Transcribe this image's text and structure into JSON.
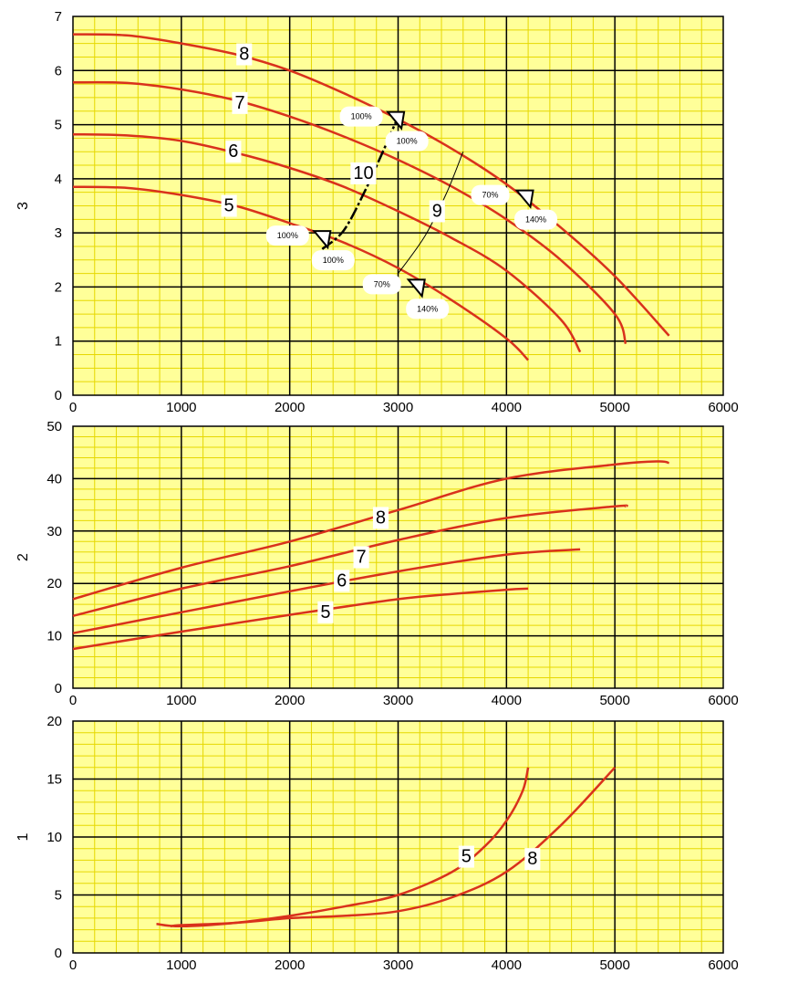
{
  "colors": {
    "background": "#ffff99",
    "minor_grid": "#e6d800",
    "major_grid": "#000000",
    "curve": "#d9311c"
  },
  "chart_data": [
    {
      "type": "line",
      "ylabel": "3",
      "xlim": [
        0,
        6000
      ],
      "ylim": [
        0,
        7
      ],
      "x_ticks": [
        "0",
        "1000",
        "2000",
        "3000",
        "4000",
        "5000",
        "6000"
      ],
      "y_ticks": [
        "0",
        "1",
        "2",
        "3",
        "4",
        "5",
        "6",
        "7"
      ],
      "grid": true,
      "series": [
        {
          "name": "5",
          "points": [
            [
              0,
              3.85
            ],
            [
              500,
              3.83
            ],
            [
              1000,
              3.7
            ],
            [
              1500,
              3.5
            ],
            [
              2000,
              3.18
            ],
            [
              2500,
              2.82
            ],
            [
              3000,
              2.35
            ],
            [
              3500,
              1.75
            ],
            [
              4000,
              1.05
            ],
            [
              4200,
              0.65
            ]
          ],
          "label_at": [
            1440,
            3.5
          ]
        },
        {
          "name": "6",
          "points": [
            [
              0,
              4.82
            ],
            [
              500,
              4.8
            ],
            [
              1000,
              4.7
            ],
            [
              1500,
              4.48
            ],
            [
              2000,
              4.2
            ],
            [
              2500,
              3.85
            ],
            [
              3000,
              3.4
            ],
            [
              3500,
              2.9
            ],
            [
              4000,
              2.3
            ],
            [
              4500,
              1.4
            ],
            [
              4680,
              0.8
            ]
          ],
          "label_at": [
            1480,
            4.5
          ]
        },
        {
          "name": "7",
          "points": [
            [
              0,
              5.78
            ],
            [
              500,
              5.77
            ],
            [
              1000,
              5.65
            ],
            [
              1500,
              5.45
            ],
            [
              2000,
              5.15
            ],
            [
              2500,
              4.78
            ],
            [
              3000,
              4.35
            ],
            [
              3500,
              3.85
            ],
            [
              4000,
              3.25
            ],
            [
              4500,
              2.5
            ],
            [
              5000,
              1.5
            ],
            [
              5100,
              0.95
            ]
          ],
          "label_at": [
            1540,
            5.4
          ]
        },
        {
          "name": "8",
          "points": [
            [
              0,
              6.67
            ],
            [
              500,
              6.65
            ],
            [
              1000,
              6.5
            ],
            [
              1500,
              6.3
            ],
            [
              2000,
              6.0
            ],
            [
              2500,
              5.58
            ],
            [
              3000,
              5.1
            ],
            [
              3500,
              4.55
            ],
            [
              4000,
              3.9
            ],
            [
              4500,
              3.1
            ],
            [
              5000,
              2.2
            ],
            [
              5500,
              1.1
            ]
          ],
          "label_at": [
            1580,
            6.3
          ]
        }
      ],
      "curve_9": {
        "label": "9",
        "points": [
          [
            3000,
            2.25
          ],
          [
            3250,
            2.95
          ],
          [
            3450,
            3.75
          ],
          [
            3600,
            4.5
          ]
        ],
        "label_at": [
          3360,
          3.4
        ]
      },
      "curve_10": {
        "label": "10",
        "points": [
          [
            2300,
            2.7
          ],
          [
            2500,
            3.05
          ],
          [
            2700,
            3.8
          ],
          [
            2870,
            4.55
          ],
          [
            2980,
            5.05
          ]
        ],
        "label_at": [
          2680,
          4.1
        ]
      },
      "markers": [
        {
          "at": [
            2980,
            5.1
          ],
          "left": "100%",
          "below": "100%"
        },
        {
          "at": [
            2300,
            2.9
          ],
          "left": "100%",
          "below": "100%"
        },
        {
          "at": [
            3170,
            2.0
          ],
          "left": "70%",
          "below": "140%"
        },
        {
          "at": [
            4170,
            3.65
          ],
          "left": "70%",
          "below": "140%"
        }
      ]
    },
    {
      "type": "line",
      "ylabel": "2",
      "xlim": [
        0,
        6000
      ],
      "ylim": [
        0,
        50
      ],
      "x_ticks": [
        "0",
        "1000",
        "2000",
        "3000",
        "4000",
        "5000",
        "6000"
      ],
      "y_ticks": [
        "0",
        "10",
        "20",
        "30",
        "40",
        "50"
      ],
      "grid": true,
      "series": [
        {
          "name": "5",
          "points": [
            [
              0,
              7.5
            ],
            [
              1000,
              10.8
            ],
            [
              2000,
              14
            ],
            [
              3000,
              17
            ],
            [
              3500,
              18
            ],
            [
              4000,
              18.8
            ],
            [
              4200,
              19
            ]
          ],
          "label_at": [
            2330,
            14.5
          ]
        },
        {
          "name": "6",
          "points": [
            [
              0,
              10.5
            ],
            [
              1000,
              14.5
            ],
            [
              2000,
              18.5
            ],
            [
              3000,
              22.3
            ],
            [
              4000,
              25.5
            ],
            [
              4680,
              26.5
            ]
          ],
          "label_at": [
            2480,
            20.5
          ]
        },
        {
          "name": "7",
          "points": [
            [
              0,
              13.8
            ],
            [
              1000,
              19
            ],
            [
              2000,
              23.3
            ],
            [
              3000,
              28.3
            ],
            [
              4000,
              32.5
            ],
            [
              5000,
              34.7
            ],
            [
              5100,
              34.7
            ]
          ],
          "label_at": [
            2660,
            25
          ]
        },
        {
          "name": "8",
          "points": [
            [
              0,
              17
            ],
            [
              1000,
              23
            ],
            [
              2000,
              28
            ],
            [
              3000,
              34
            ],
            [
              4000,
              40
            ],
            [
              5000,
              42.7
            ],
            [
              5400,
              43.3
            ],
            [
              5500,
              43
            ]
          ],
          "label_at": [
            2840,
            32.5
          ]
        }
      ]
    },
    {
      "type": "line",
      "ylabel": "1",
      "xlim": [
        0,
        6000
      ],
      "ylim": [
        0,
        20
      ],
      "x_ticks": [
        "0",
        "1000",
        "2000",
        "3000",
        "4000",
        "5000",
        "6000"
      ],
      "y_ticks": [
        "0",
        "5",
        "10",
        "15",
        "20"
      ],
      "grid": true,
      "series": [
        {
          "name": "5",
          "points": [
            [
              770,
              2.5
            ],
            [
              1000,
              2.3
            ],
            [
              1500,
              2.6
            ],
            [
              2000,
              3.2
            ],
            [
              2500,
              4.0
            ],
            [
              3000,
              5.0
            ],
            [
              3500,
              7.0
            ],
            [
              3800,
              9.2
            ],
            [
              4000,
              11.4
            ],
            [
              4150,
              14
            ],
            [
              4200,
              16
            ]
          ],
          "label_at": [
            3630,
            8.3
          ]
        },
        {
          "name": "8",
          "points": [
            [
              900,
              2.3
            ],
            [
              1000,
              2.4
            ],
            [
              1500,
              2.6
            ],
            [
              2000,
              3.0
            ],
            [
              2500,
              3.2
            ],
            [
              3000,
              3.6
            ],
            [
              3500,
              4.8
            ],
            [
              4000,
              7.0
            ],
            [
              4500,
              11.0
            ],
            [
              5000,
              16
            ]
          ],
          "label_at": [
            4240,
            8.1
          ]
        }
      ]
    }
  ]
}
